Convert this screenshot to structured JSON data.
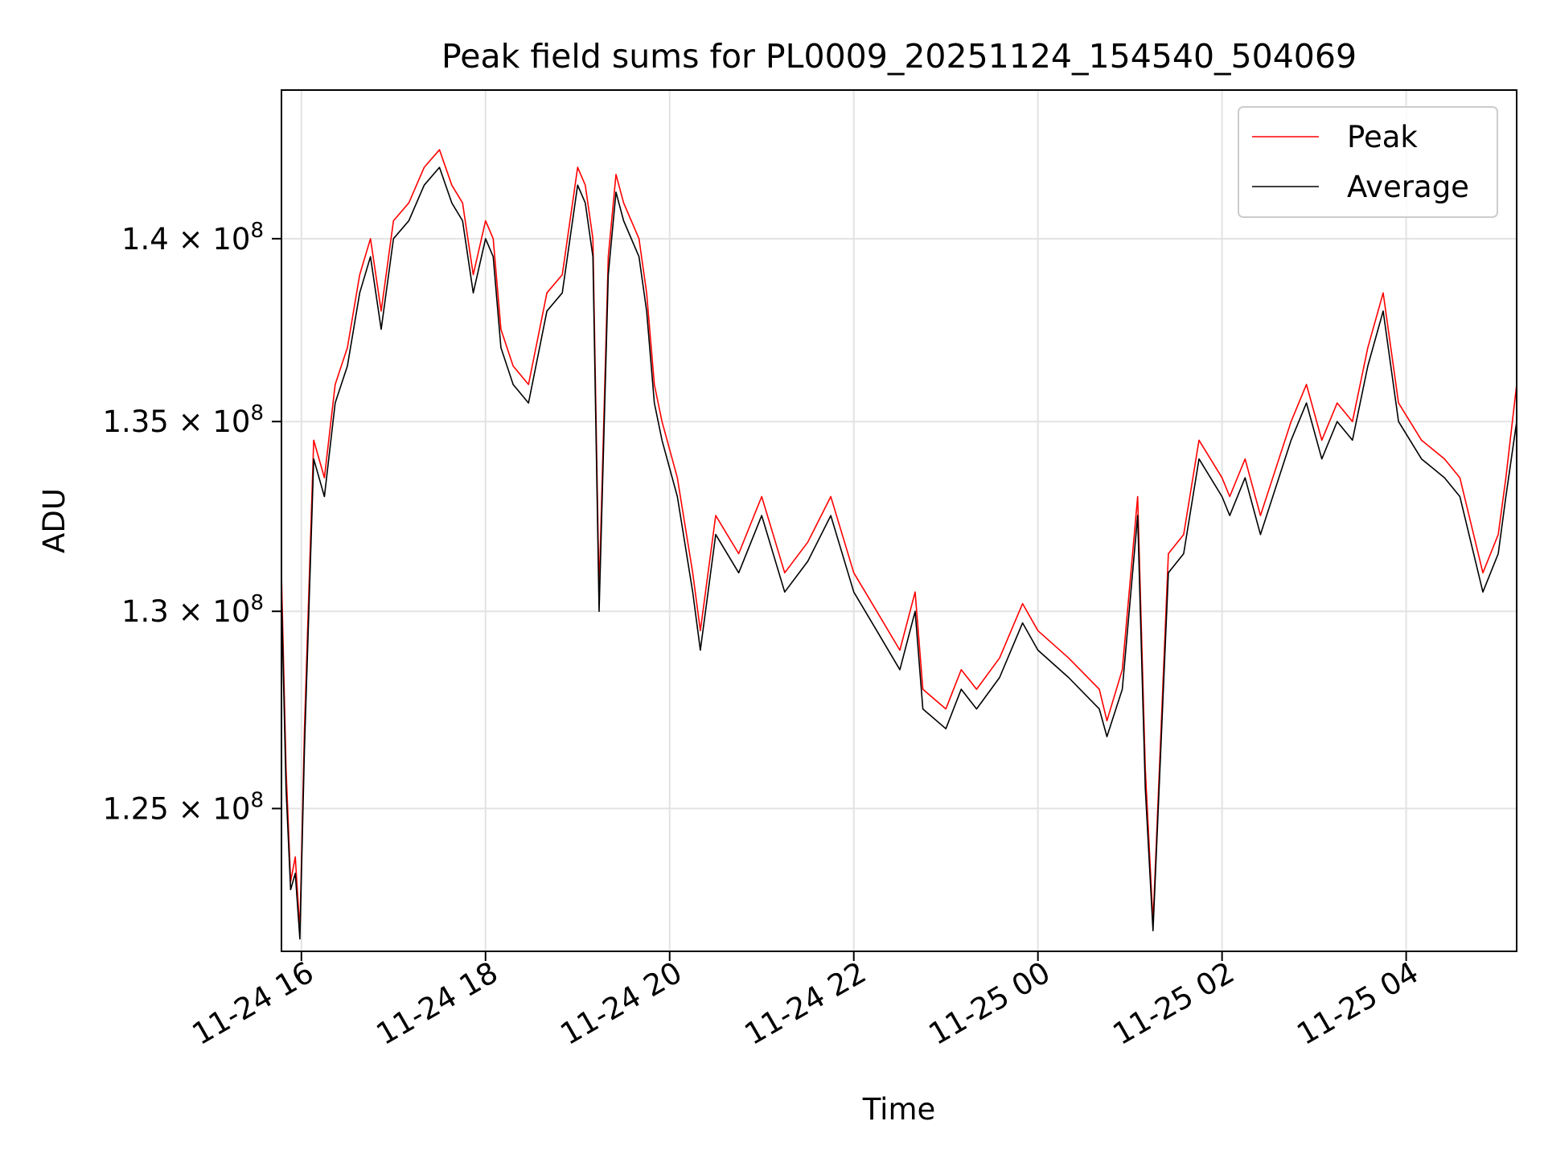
{
  "chart_data": {
    "type": "line",
    "title": "Peak field sums for PL0009_20251124_154540_504069",
    "xlabel": "Time",
    "ylabel": "ADU",
    "x_axis": "datetime",
    "xlim": [
      "2025-11-24 15:47",
      "2025-11-25 05:12"
    ],
    "ylim": [
      121500000,
      144200000
    ],
    "yscale": "log",
    "grid": true,
    "legend_position": "upper right",
    "xticks": [
      {
        "value": "2025-11-24 16:00",
        "label": "11-24 16"
      },
      {
        "value": "2025-11-24 18:00",
        "label": "11-24 18"
      },
      {
        "value": "2025-11-24 20:00",
        "label": "11-24 20"
      },
      {
        "value": "2025-11-24 22:00",
        "label": "11-24 22"
      },
      {
        "value": "2025-11-25 00:00",
        "label": "11-25 00"
      },
      {
        "value": "2025-11-25 02:00",
        "label": "11-25 02"
      },
      {
        "value": "2025-11-25 04:00",
        "label": "11-25 04"
      }
    ],
    "yticks": [
      {
        "value": 125000000,
        "mantissa": "1.25",
        "base": "10",
        "exp": "8"
      },
      {
        "value": 130000000,
        "mantissa": "1.3",
        "base": "10",
        "exp": "8"
      },
      {
        "value": 135000000,
        "mantissa": "1.35",
        "base": "10",
        "exp": "8"
      },
      {
        "value": 140000000,
        "mantissa": "1.4",
        "base": "10",
        "exp": "8"
      }
    ],
    "times": [
      "2025-11-24 15:47",
      "2025-11-24 15:50",
      "2025-11-24 15:53",
      "2025-11-24 15:56",
      "2025-11-24 15:59",
      "2025-11-24 16:02",
      "2025-11-24 16:08",
      "2025-11-24 16:15",
      "2025-11-24 16:22",
      "2025-11-24 16:30",
      "2025-11-24 16:38",
      "2025-11-24 16:45",
      "2025-11-24 16:52",
      "2025-11-24 17:00",
      "2025-11-24 17:10",
      "2025-11-24 17:20",
      "2025-11-24 17:30",
      "2025-11-24 17:38",
      "2025-11-24 17:45",
      "2025-11-24 17:52",
      "2025-11-24 18:00",
      "2025-11-24 18:05",
      "2025-11-24 18:10",
      "2025-11-24 18:18",
      "2025-11-24 18:28",
      "2025-11-24 18:40",
      "2025-11-24 18:50",
      "2025-11-24 19:00",
      "2025-11-24 19:05",
      "2025-11-24 19:10",
      "2025-11-24 19:14",
      "2025-11-24 19:20",
      "2025-11-24 19:25",
      "2025-11-24 19:30",
      "2025-11-24 19:40",
      "2025-11-24 19:45",
      "2025-11-24 19:50",
      "2025-11-24 19:55",
      "2025-11-24 20:05",
      "2025-11-24 20:15",
      "2025-11-24 20:20",
      "2025-11-24 20:30",
      "2025-11-24 20:45",
      "2025-11-24 21:00",
      "2025-11-24 21:15",
      "2025-11-24 21:30",
      "2025-11-24 21:45",
      "2025-11-24 22:00",
      "2025-11-24 22:15",
      "2025-11-24 22:30",
      "2025-11-24 22:40",
      "2025-11-24 22:45",
      "2025-11-24 23:00",
      "2025-11-24 23:10",
      "2025-11-24 23:20",
      "2025-11-24 23:35",
      "2025-11-24 23:50",
      "2025-11-25 00:00",
      "2025-11-25 00:20",
      "2025-11-25 00:40",
      "2025-11-25 00:45",
      "2025-11-25 00:55",
      "2025-11-25 01:05",
      "2025-11-25 01:10",
      "2025-11-25 01:15",
      "2025-11-25 01:25",
      "2025-11-25 01:35",
      "2025-11-25 01:45",
      "2025-11-25 02:00",
      "2025-11-25 02:05",
      "2025-11-25 02:15",
      "2025-11-25 02:25",
      "2025-11-25 02:45",
      "2025-11-25 02:55",
      "2025-11-25 03:05",
      "2025-11-25 03:15",
      "2025-11-25 03:25",
      "2025-11-25 03:35",
      "2025-11-25 03:45",
      "2025-11-25 03:55",
      "2025-11-25 04:10",
      "2025-11-25 04:25",
      "2025-11-25 04:35",
      "2025-11-25 04:50",
      "2025-11-25 05:00",
      "2025-11-25 05:05",
      "2025-11-25 05:12"
    ],
    "series": [
      {
        "name": "Peak",
        "color": "#ff0000",
        "values": [
          131000000,
          126000000,
          123200000,
          123800000,
          122000000,
          127000000,
          134500000,
          133500000,
          136000000,
          137000000,
          139000000,
          140000000,
          138000000,
          140500000,
          141000000,
          142000000,
          142500000,
          141500000,
          141000000,
          139000000,
          140500000,
          140000000,
          137500000,
          136500000,
          136000000,
          138500000,
          139000000,
          142000000,
          141500000,
          140000000,
          130500000,
          139500000,
          141800000,
          141000000,
          140000000,
          138500000,
          136000000,
          135000000,
          133500000,
          131000000,
          129500000,
          132500000,
          131500000,
          133000000,
          131000000,
          131800000,
          133000000,
          131000000,
          130000000,
          129000000,
          130500000,
          128000000,
          127500000,
          128500000,
          128000000,
          128800000,
          130200000,
          129500000,
          128800000,
          128000000,
          127200000,
          128500000,
          133000000,
          126000000,
          122200000,
          131500000,
          132000000,
          134500000,
          133500000,
          133000000,
          134000000,
          132500000,
          135000000,
          136000000,
          134500000,
          135500000,
          135000000,
          137000000,
          138500000,
          135500000,
          134500000,
          134000000,
          133500000,
          131000000,
          132000000,
          133500000,
          136000000
        ]
      },
      {
        "name": "Average",
        "color": "#000000",
        "values": [
          130500000,
          125500000,
          123000000,
          123400000,
          121800000,
          126500000,
          134000000,
          133000000,
          135500000,
          136500000,
          138500000,
          139500000,
          137500000,
          140000000,
          140500000,
          141500000,
          142000000,
          141000000,
          140500000,
          138500000,
          140000000,
          139500000,
          137000000,
          136000000,
          135500000,
          138000000,
          138500000,
          141500000,
          141000000,
          139500000,
          130000000,
          139000000,
          141300000,
          140500000,
          139500000,
          138000000,
          135500000,
          134500000,
          133000000,
          130500000,
          129000000,
          132000000,
          131000000,
          132500000,
          130500000,
          131300000,
          132500000,
          130500000,
          129500000,
          128500000,
          130000000,
          127500000,
          127000000,
          128000000,
          127500000,
          128300000,
          129700000,
          129000000,
          128300000,
          127500000,
          126800000,
          128000000,
          132500000,
          125500000,
          122000000,
          131000000,
          131500000,
          134000000,
          133000000,
          132500000,
          133500000,
          132000000,
          134500000,
          135500000,
          134000000,
          135000000,
          134500000,
          136500000,
          138000000,
          135000000,
          134000000,
          133500000,
          133000000,
          130500000,
          131500000,
          133000000,
          135000000
        ]
      }
    ]
  }
}
